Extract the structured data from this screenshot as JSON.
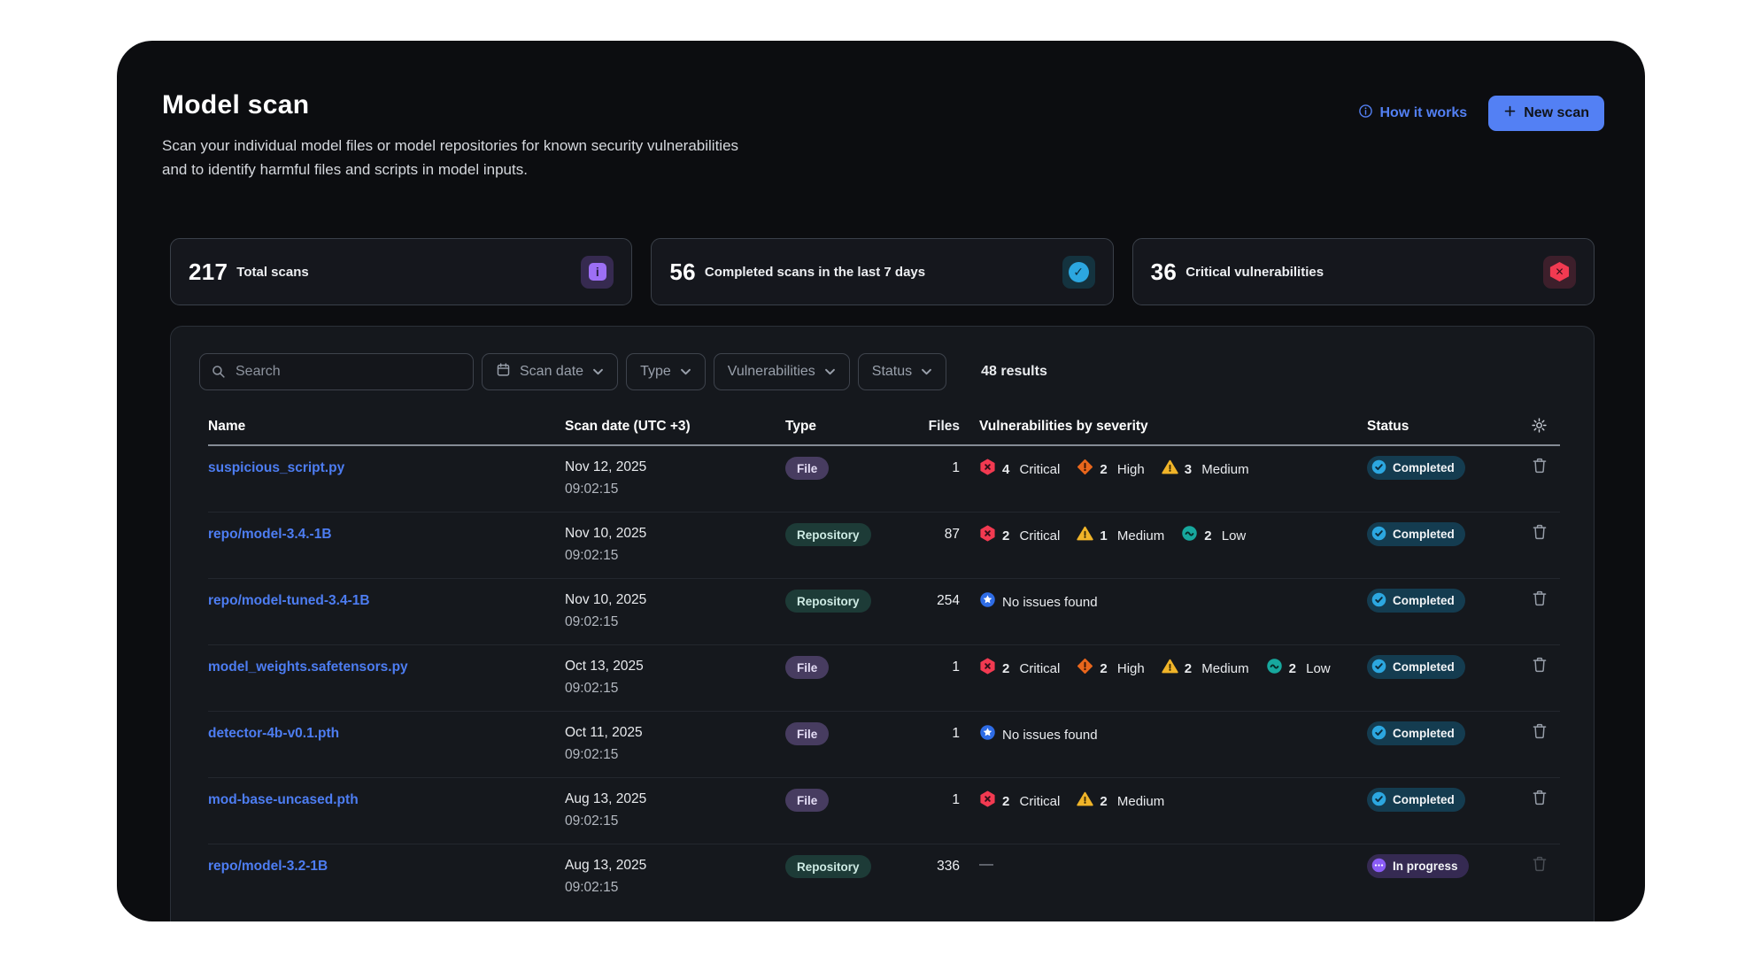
{
  "page": {
    "title": "Model scan",
    "subtitle_line1": "Scan your individual model files or model repositories for known security vulnerabilities",
    "subtitle_line2": "and to identify harmful files and scripts in model inputs.",
    "how_it_works_label": "How it works",
    "new_scan_label": "New scan"
  },
  "stats": [
    {
      "value": "217",
      "label": "Total scans",
      "icon": "info-icon",
      "accent": "purple"
    },
    {
      "value": "56",
      "label": "Completed scans in the last 7 days",
      "icon": "check-circle-icon",
      "accent": "blue"
    },
    {
      "value": "36",
      "label": "Critical vulnerabilities",
      "icon": "critical-hexagon-icon",
      "accent": "red"
    }
  ],
  "filters": {
    "search_placeholder": "Search",
    "dropdowns": [
      "Scan date",
      "Type",
      "Vulnerabilities",
      "Status"
    ],
    "results_count": "48 results"
  },
  "table": {
    "columns": [
      "Name",
      "Scan date (UTC +3)",
      "Type",
      "Files",
      "Vulnerabilities by severity",
      "Status"
    ],
    "rows": [
      {
        "name": "suspicious_script.py",
        "date": "Nov 12, 2025",
        "time": "09:02:15",
        "type": "File",
        "files": "1",
        "vulns": [
          {
            "severity": "critical",
            "count": "4",
            "label": "Critical"
          },
          {
            "severity": "high",
            "count": "2",
            "label": "High"
          },
          {
            "severity": "medium",
            "count": "3",
            "label": "Medium"
          }
        ],
        "status": "Completed",
        "deletable": true
      },
      {
        "name": "repo/model-3.4.-1B",
        "date": "Nov 10, 2025",
        "time": "09:02:15",
        "type": "Repository",
        "files": "87",
        "vulns": [
          {
            "severity": "critical",
            "count": "2",
            "label": "Critical"
          },
          {
            "severity": "medium",
            "count": "1",
            "label": "Medium"
          },
          {
            "severity": "low",
            "count": "2",
            "label": "Low"
          }
        ],
        "status": "Completed",
        "deletable": true
      },
      {
        "name": "repo/model-tuned-3.4-1B",
        "date": "Nov 10, 2025",
        "time": "09:02:15",
        "type": "Repository",
        "files": "254",
        "vulns": [],
        "no_issues": "No issues found",
        "status": "Completed",
        "deletable": true
      },
      {
        "name": "model_weights.safetensors.py",
        "date": "Oct 13, 2025",
        "time": "09:02:15",
        "type": "File",
        "files": "1",
        "vulns": [
          {
            "severity": "critical",
            "count": "2",
            "label": "Critical"
          },
          {
            "severity": "high",
            "count": "2",
            "label": "High"
          },
          {
            "severity": "medium",
            "count": "2",
            "label": "Medium"
          },
          {
            "severity": "low",
            "count": "2",
            "label": "Low"
          }
        ],
        "status": "Completed",
        "deletable": true
      },
      {
        "name": "detector-4b-v0.1.pth",
        "date": "Oct 11, 2025",
        "time": "09:02:15",
        "type": "File",
        "files": "1",
        "vulns": [],
        "no_issues": "No issues found",
        "status": "Completed",
        "deletable": true
      },
      {
        "name": "mod-base-uncased.pth",
        "date": "Aug 13, 2025",
        "time": "09:02:15",
        "type": "File",
        "files": "1",
        "vulns": [
          {
            "severity": "critical",
            "count": "2",
            "label": "Critical"
          },
          {
            "severity": "medium",
            "count": "2",
            "label": "Medium"
          }
        ],
        "status": "Completed",
        "deletable": true
      },
      {
        "name": "repo/model-3.2-1B",
        "date": "Aug 13, 2025",
        "time": "09:02:15",
        "type": "Repository",
        "files": "336",
        "vulns": [],
        "dash": "—",
        "status": "In progress",
        "deletable": false
      }
    ]
  },
  "colors": {
    "accent_blue": "#5380f4",
    "link_blue": "#4d7df2",
    "critical_red": "#f23a51",
    "high_orange": "#e9661c",
    "medium_yellow": "#f0b429",
    "low_teal": "#17a89e",
    "no_issues_blue": "#2e6ce6",
    "completed_cyan": "#2ca7e0",
    "progress_purple": "#8a5cf6"
  }
}
